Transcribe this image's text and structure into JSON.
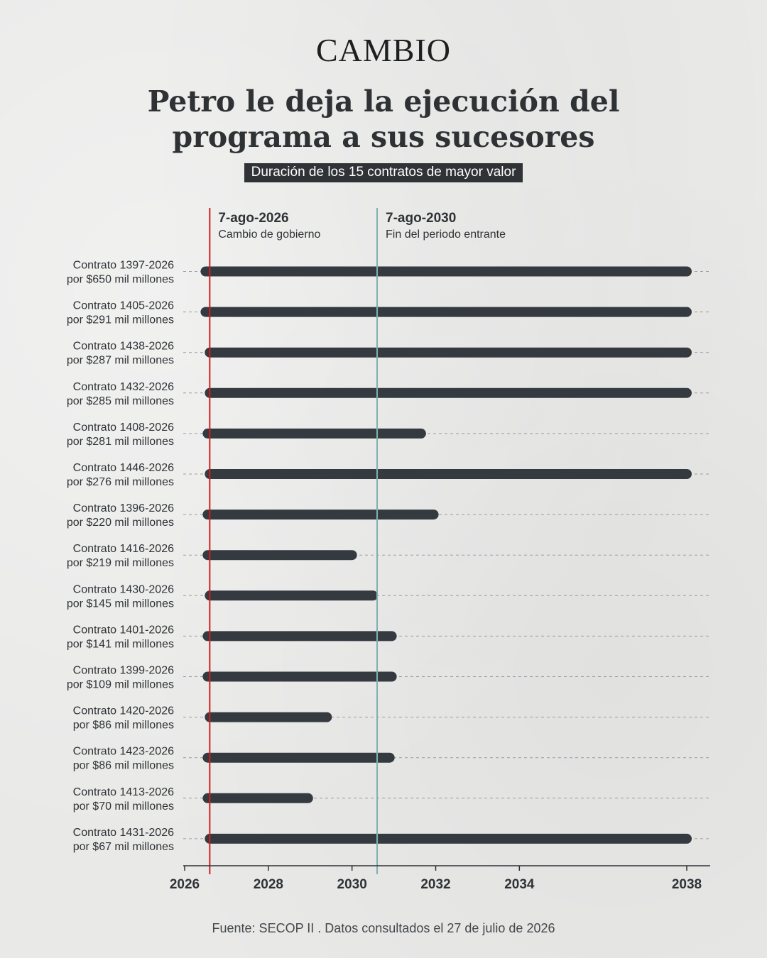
{
  "header": {
    "logo": "CAMBIO",
    "title_line1": "Petro le deja la ejecución del",
    "title_line2": "programa a sus sucesores",
    "subtitle": "Duración de los 15 contratos de mayor valor"
  },
  "footer": {
    "source": "Fuente: SECOP II . Datos consultados el 27 de julio de 2026"
  },
  "colors": {
    "bar": "#343a3f",
    "marker_government": "#d0201c",
    "marker_period": "#7fb0ae",
    "text": "#2f3336",
    "grid": "#9a9d9f"
  },
  "chart_data": {
    "type": "bar",
    "orientation": "horizontal-range",
    "title": "Petro le deja la ejecución del programa a sus sucesores",
    "subtitle": "Duración de los 15 contratos de mayor valor",
    "xlabel": "",
    "ylabel": "",
    "xlim": [
      2026,
      2038.5
    ],
    "xticks": [
      2026,
      2028,
      2030,
      2032,
      2034,
      2038
    ],
    "grid": "dashed horizontal per row",
    "reference_lines": [
      {
        "x": 2026.6,
        "label": "7-ago-2026",
        "sublabel": "Cambio de gobierno",
        "color": "#d0201c"
      },
      {
        "x": 2030.6,
        "label": "7-ago-2030",
        "sublabel": "Fin del periodo entrante",
        "color": "#7fb0ae"
      }
    ],
    "contracts": [
      {
        "line1": "Contrato 1397-2026",
        "line2": "por $650 mil millones",
        "start": 2026.5,
        "end": 2038.0
      },
      {
        "line1": "Contrato 1405-2026",
        "line2": "por $291 mil millones",
        "start": 2026.5,
        "end": 2038.0
      },
      {
        "line1": "Contrato 1438-2026",
        "line2": "por $287 mil millones",
        "start": 2026.6,
        "end": 2038.0
      },
      {
        "line1": "Contrato 1432-2026",
        "line2": "por $285 mil millones",
        "start": 2026.6,
        "end": 2038.0
      },
      {
        "line1": "Contrato 1408-2026",
        "line2": "por $281 mil millones",
        "start": 2026.55,
        "end": 2031.65
      },
      {
        "line1": "Contrato 1446-2026",
        "line2": "por $276 mil millones",
        "start": 2026.6,
        "end": 2038.0
      },
      {
        "line1": "Contrato 1396-2026",
        "line2": "por $220 mil millones",
        "start": 2026.55,
        "end": 2031.95
      },
      {
        "line1": "Contrato 1416-2026",
        "line2": "por $219 mil millones",
        "start": 2026.55,
        "end": 2030.0
      },
      {
        "line1": "Contrato 1430-2026",
        "line2": "por $145 mil millones",
        "start": 2026.6,
        "end": 2030.5
      },
      {
        "line1": "Contrato 1401-2026",
        "line2": "por $141 mil millones",
        "start": 2026.55,
        "end": 2030.95
      },
      {
        "line1": "Contrato 1399-2026",
        "line2": "por $109 mil millones",
        "start": 2026.55,
        "end": 2030.95
      },
      {
        "line1": "Contrato 1420-2026",
        "line2": "por $86 mil millones",
        "start": 2026.6,
        "end": 2029.4
      },
      {
        "line1": "Contrato 1423-2026",
        "line2": "por $86 mil millones",
        "start": 2026.55,
        "end": 2030.9
      },
      {
        "line1": "Contrato 1413-2026",
        "line2": "por $70 mil millones",
        "start": 2026.55,
        "end": 2028.95
      },
      {
        "line1": "Contrato 1431-2026",
        "line2": "por $67 mil millones",
        "start": 2026.6,
        "end": 2038.0
      }
    ]
  }
}
